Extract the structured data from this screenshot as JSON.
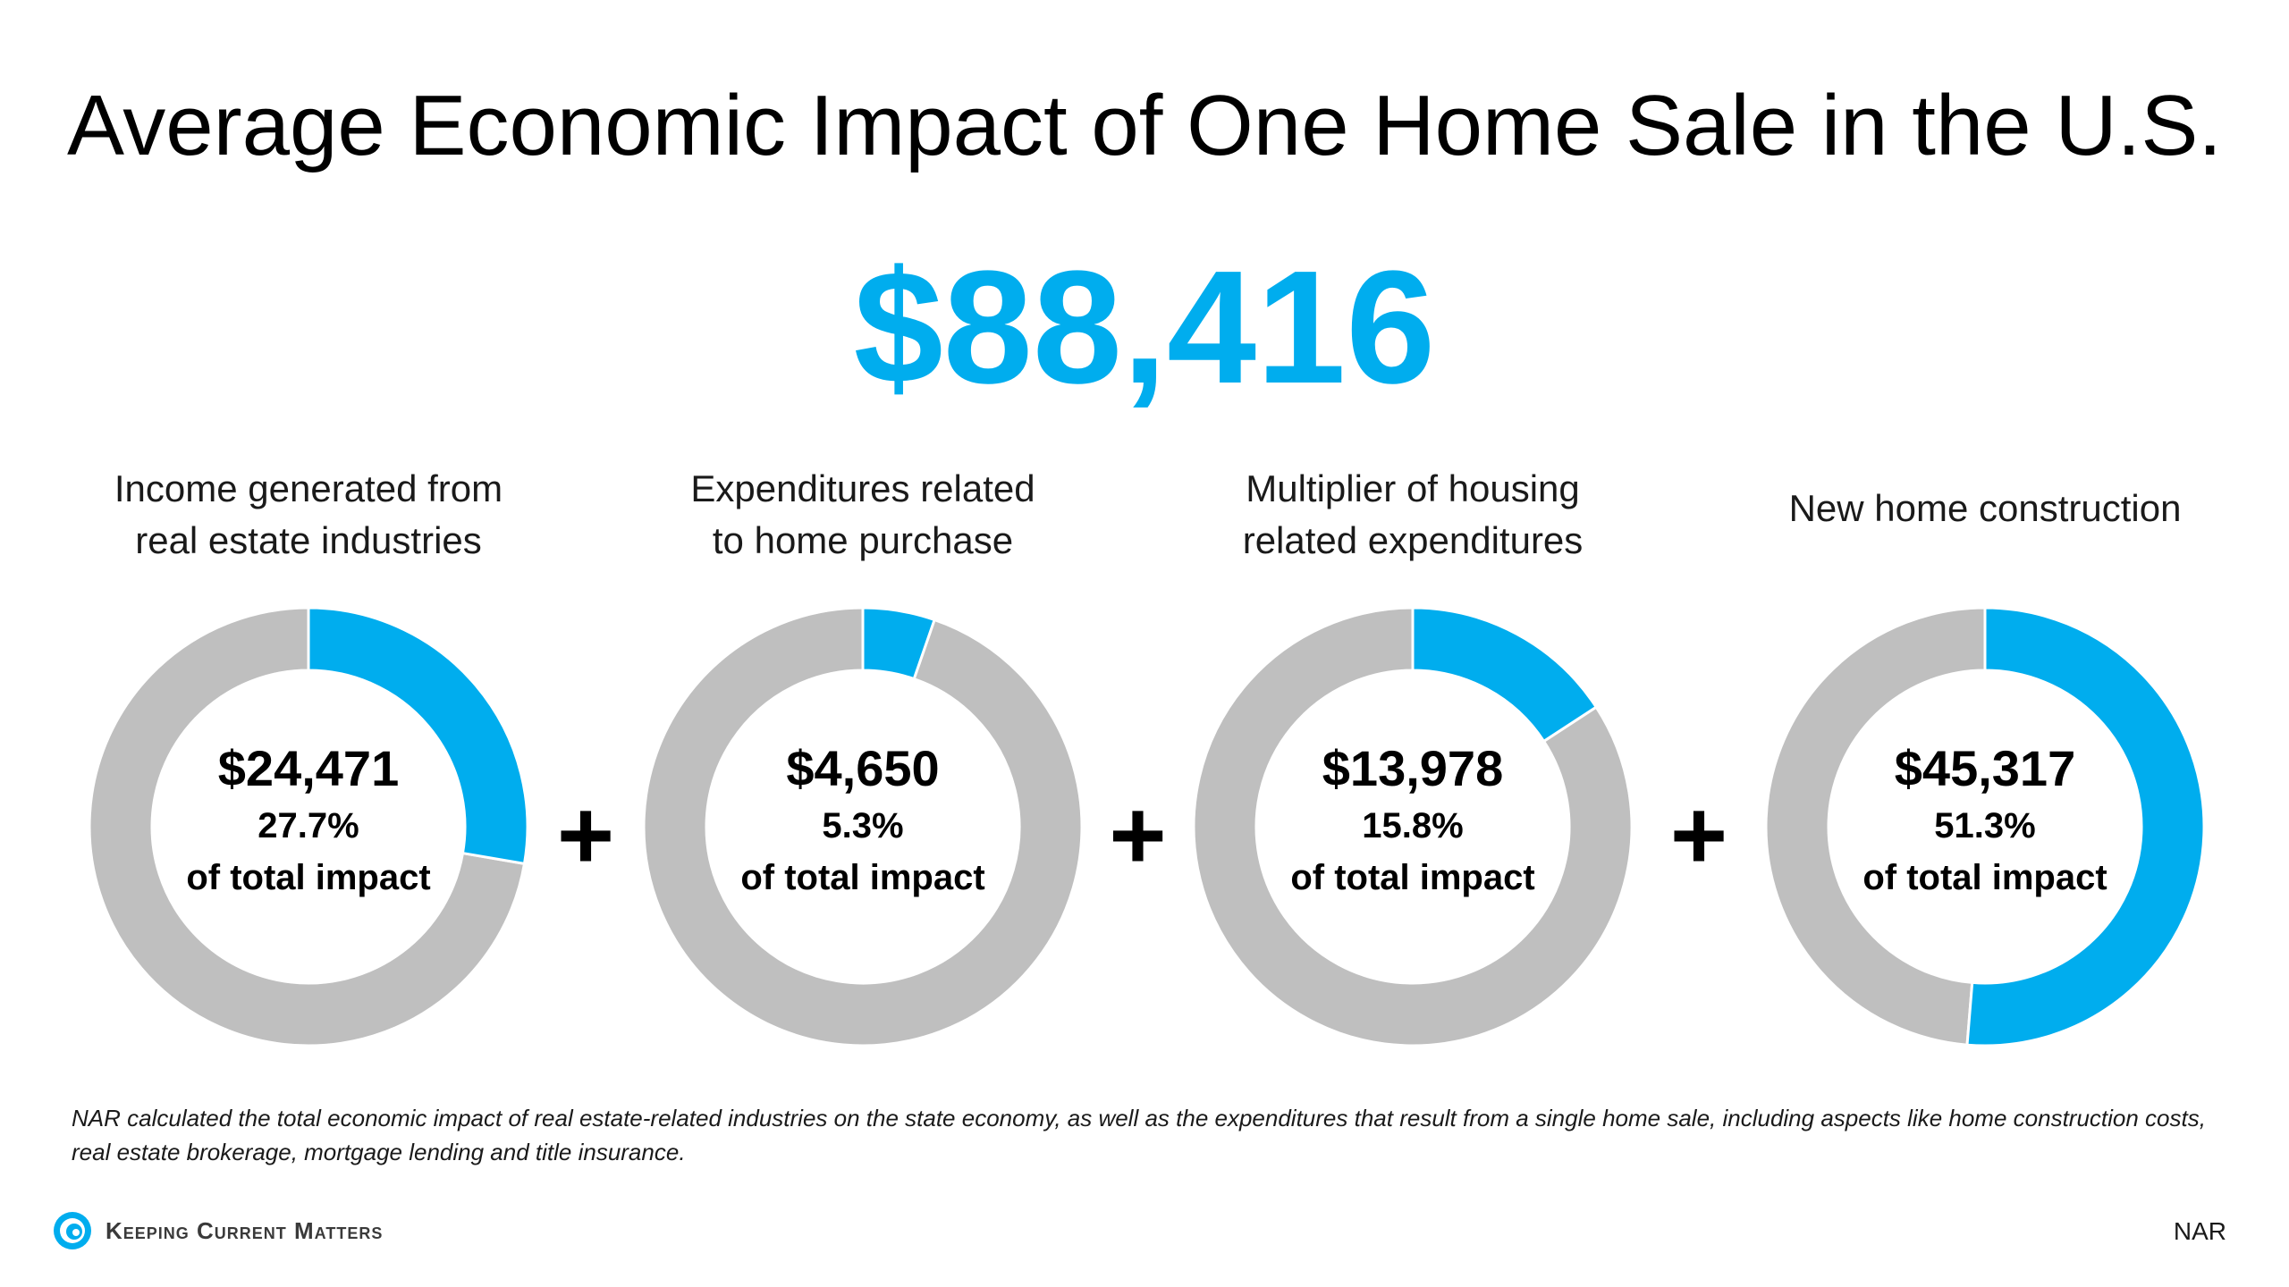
{
  "header": {
    "title": "Average Economic Impact of One Home Sale in the U.S.",
    "total": "$88,416"
  },
  "chart_data": {
    "type": "pie",
    "title": "Average Economic Impact of One Home Sale in the U.S.",
    "accent_color": "#00adee",
    "remainder_color": "#bfbfbf",
    "series": [
      {
        "name": "Income generated from real estate industries",
        "label_lines": [
          "Income generated from",
          "real estate industries"
        ],
        "value_label": "$24,471",
        "value": 24471,
        "percent": 27.7,
        "percent_label": "27.7%",
        "sub_label": "of total impact"
      },
      {
        "name": "Expenditures related to home purchase",
        "label_lines": [
          "Expenditures related",
          "to home purchase"
        ],
        "value_label": "$4,650",
        "value": 4650,
        "percent": 5.3,
        "percent_label": "5.3%",
        "sub_label": "of total impact"
      },
      {
        "name": "Multiplier of housing related expenditures",
        "label_lines": [
          "Multiplier of housing",
          "related expenditures"
        ],
        "value_label": "$13,978",
        "value": 13978,
        "percent": 15.8,
        "percent_label": "15.8%",
        "sub_label": "of total impact"
      },
      {
        "name": "New home construction",
        "label_lines": [
          "New home construction"
        ],
        "value_label": "$45,317",
        "value": 45317,
        "percent": 51.3,
        "percent_label": "51.3%",
        "sub_label": "of total impact"
      }
    ],
    "operator": "+"
  },
  "footnote": "NAR calculated the total economic impact of real estate-related industries on the state economy, as well as the expenditures that result from a single home sale, including aspects like home construction costs, real estate brokerage, mortgage lending and title insurance.",
  "brand": {
    "name": "Keeping Current Matters",
    "logo_icon": "swirl-logo-icon"
  },
  "source": "NAR"
}
